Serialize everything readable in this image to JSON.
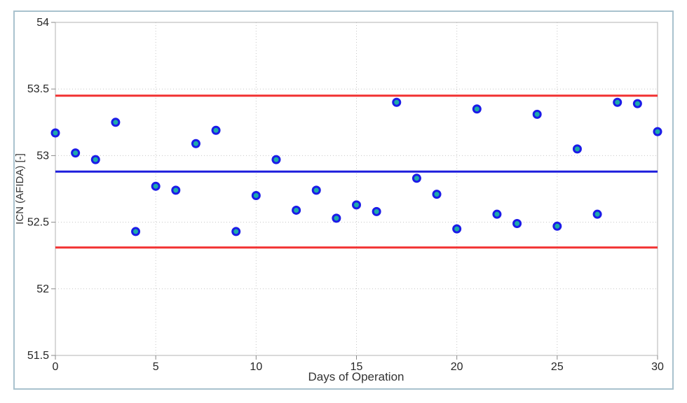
{
  "figure": {
    "border_color": "#a9c2ce",
    "background_color": "#ffffff"
  },
  "chart_data": {
    "type": "scatter",
    "title": "",
    "xlabel": "Days of Operation",
    "ylabel": "ICN (AFIDA) [-]",
    "xlim": [
      0,
      30
    ],
    "ylim": [
      51.5,
      54
    ],
    "x_ticks": [
      0,
      5,
      10,
      15,
      20,
      25,
      30
    ],
    "y_ticks": [
      51.5,
      52,
      52.5,
      53,
      53.5,
      54
    ],
    "grid": "dotted",
    "legend_position": "none",
    "x": [
      0,
      1,
      2,
      3,
      4,
      5,
      6,
      7,
      8,
      9,
      10,
      11,
      12,
      13,
      14,
      15,
      16,
      17,
      18,
      19,
      20,
      21,
      22,
      23,
      24,
      25,
      26,
      27,
      28,
      29,
      30
    ],
    "y": [
      53.17,
      53.02,
      52.97,
      53.25,
      52.43,
      52.77,
      52.74,
      53.09,
      53.19,
      52.43,
      52.7,
      52.97,
      52.59,
      52.74,
      52.53,
      52.63,
      52.58,
      53.4,
      52.83,
      52.71,
      52.45,
      53.35,
      52.56,
      52.49,
      53.31,
      52.47,
      53.05,
      52.56,
      53.4,
      53.39,
      53.18
    ],
    "reference_lines": [
      {
        "name": "upper-control-limit",
        "value": 53.45,
        "color": "#f23232"
      },
      {
        "name": "center-line",
        "value": 52.88,
        "color": "#1e1edd"
      },
      {
        "name": "lower-control-limit",
        "value": 52.31,
        "color": "#f23232"
      }
    ],
    "colors": {
      "marker_fill": "#1caaaa",
      "marker_stroke": "#1b1be8",
      "grid_color": "#c6c6c6",
      "box_color": "#b3b3b3",
      "tick_color": "#8a8a8a",
      "tick_label_color": "#262626"
    }
  }
}
